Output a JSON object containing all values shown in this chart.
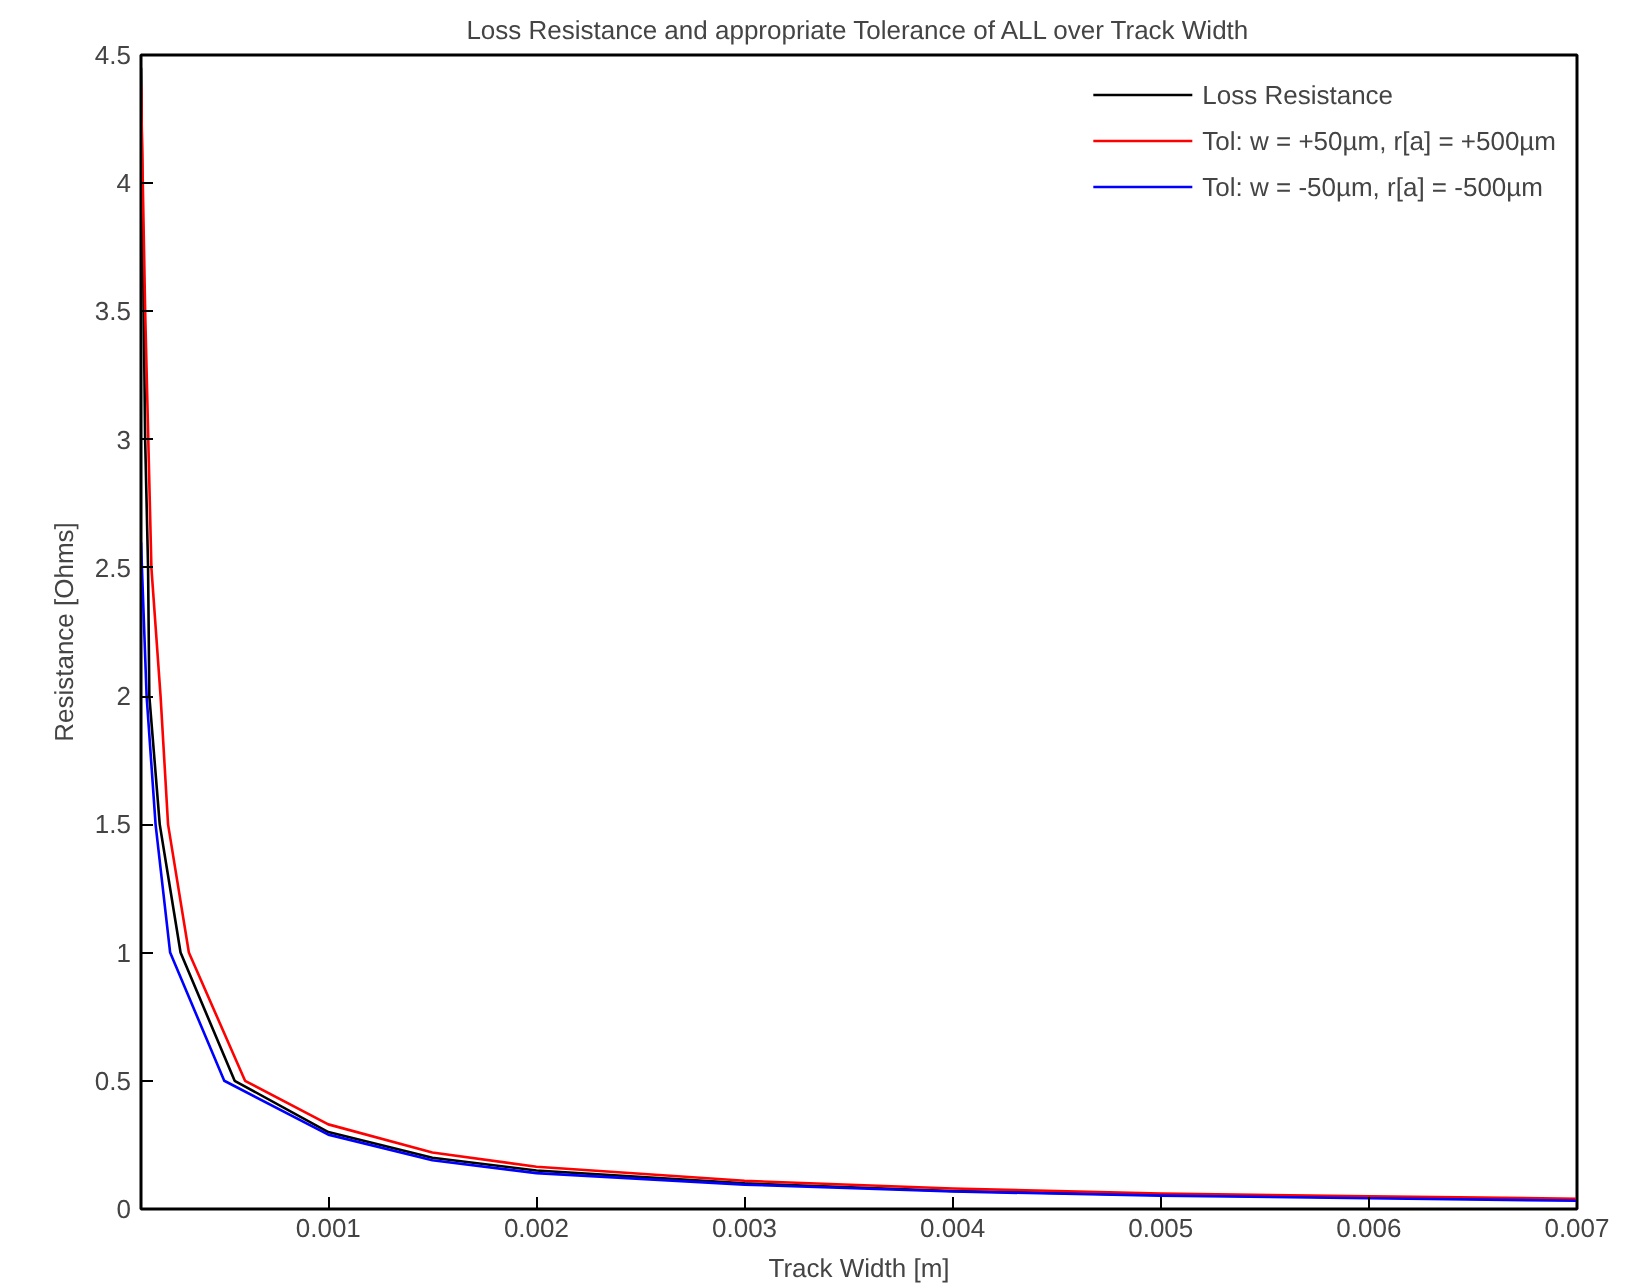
{
  "chart_data": {
    "type": "line",
    "title": "Loss Resistance and appropriate Tolerance of ALL over Track Width",
    "xlabel": "Track Width [m]",
    "ylabel": "Resistance [Ohms]",
    "xlim": [
      0.0001,
      0.007
    ],
    "ylim": [
      0,
      4.5
    ],
    "xticks": [
      0.001,
      0.002,
      0.003,
      0.004,
      0.005,
      0.006,
      0.007
    ],
    "yticks": [
      0,
      0.5,
      1,
      1.5,
      2,
      2.5,
      3,
      3.5,
      4,
      4.5
    ],
    "grid": false,
    "legend": "top right",
    "marker": "none",
    "line_style": "solid",
    "series": [
      {
        "name": "Loss Resistance",
        "color": "#000000",
        "x": [
          0.0001,
          0.00012,
          0.000134,
          0.00014,
          0.00019,
          0.00029,
          0.00055,
          0.001,
          0.0015,
          0.002,
          0.003,
          0.004,
          0.005,
          0.006,
          0.007
        ],
        "values": [
          4.45,
          3.0,
          2.5,
          2.0,
          1.5,
          1.0,
          0.5,
          0.3,
          0.2,
          0.15,
          0.1,
          0.07,
          0.055,
          0.045,
          0.035
        ]
      },
      {
        "name": "Tol: w = +50µm, r[a] = +500µm",
        "color": "#ff0000",
        "x": [
          0.0001,
          0.00012,
          0.00015,
          0.000194,
          0.00023,
          0.00033,
          0.0006,
          0.001,
          0.0015,
          0.002,
          0.003,
          0.004,
          0.005,
          0.006,
          0.007
        ],
        "values": [
          4.38,
          3.5,
          2.5,
          2.0,
          1.5,
          1.0,
          0.5,
          0.33,
          0.22,
          0.165,
          0.11,
          0.08,
          0.06,
          0.05,
          0.04
        ]
      },
      {
        "name": "Tol: w = -50µm, r[a] = -500µm",
        "color": "#0000ff",
        "x": [
          0.0001,
          0.000127,
          0.00017,
          0.00024,
          0.0005,
          0.001,
          0.0015,
          0.002,
          0.003,
          0.004,
          0.005,
          0.006,
          0.007
        ],
        "values": [
          2.6,
          2.0,
          1.5,
          1.0,
          0.5,
          0.29,
          0.19,
          0.14,
          0.095,
          0.068,
          0.052,
          0.042,
          0.032
        ]
      }
    ]
  }
}
